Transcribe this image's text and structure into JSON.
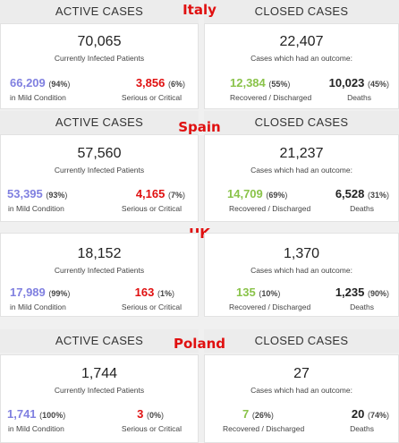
{
  "countries": [
    {
      "name": "Italy",
      "active": {
        "header": "ACTIVE CASES",
        "total": "70,065",
        "sub": "Currently Infected Patients",
        "mild": "66,209",
        "mild_pct": "94%",
        "mild_label": "in Mild Condition",
        "serious": "3,856",
        "serious_pct": "6%",
        "serious_label": "Serious or Critical"
      },
      "closed": {
        "header": "CLOSED CASES",
        "total": "22,407",
        "sub": "Cases which had an outcome:",
        "recovered": "12,384",
        "recovered_pct": "55%",
        "recovered_label": "Recovered / Discharged",
        "deaths": "10,023",
        "deaths_pct": "45%",
        "deaths_label": "Deaths"
      }
    },
    {
      "name": "Spain",
      "active": {
        "header": "ACTIVE CASES",
        "total": "57,560",
        "sub": "Currently Infected Patients",
        "mild": "53,395",
        "mild_pct": "93%",
        "mild_label": "in Mild Condition",
        "serious": "4,165",
        "serious_pct": "7%",
        "serious_label": "Serious or Critical"
      },
      "closed": {
        "header": "CLOSED CASES",
        "total": "21,237",
        "sub": "Cases which had an outcome:",
        "recovered": "14,709",
        "recovered_pct": "69%",
        "recovered_label": "Recovered / Discharged",
        "deaths": "6,528",
        "deaths_pct": "31%",
        "deaths_label": "Deaths"
      }
    },
    {
      "name": "UK",
      "active": {
        "header": "",
        "total": "18,152",
        "sub": "Currently Infected Patients",
        "mild": "17,989",
        "mild_pct": "99%",
        "mild_label": "in Mild Condition",
        "serious": "163",
        "serious_pct": "1%",
        "serious_label": "Serious or Critical"
      },
      "closed": {
        "header": "",
        "total": "1,370",
        "sub": "Cases which had an outcome:",
        "recovered": "135",
        "recovered_pct": "10%",
        "recovered_label": "Recovered / Discharged",
        "deaths": "1,235",
        "deaths_pct": "90%",
        "deaths_label": "Deaths"
      }
    },
    {
      "name": "Poland",
      "active": {
        "header": "ACTIVE CASES",
        "total": "1,744",
        "sub": "Currently Infected Patients",
        "mild": "1,741",
        "mild_pct": "100%",
        "mild_label": "in Mild Condition",
        "serious": "3",
        "serious_pct": "0%",
        "serious_label": "Serious or Critical"
      },
      "closed": {
        "header": "CLOSED CASES",
        "total": "27",
        "sub": "Cases which had an outcome:",
        "recovered": "7",
        "recovered_pct": "26%",
        "recovered_label": "Recovered / Discharged",
        "deaths": "20",
        "deaths_pct": "74%",
        "deaths_label": "Deaths"
      }
    }
  ],
  "colors": {
    "mild": "#8080e0",
    "serious": "#e01010",
    "recovered": "#8ac34a",
    "country": "#e01010"
  }
}
